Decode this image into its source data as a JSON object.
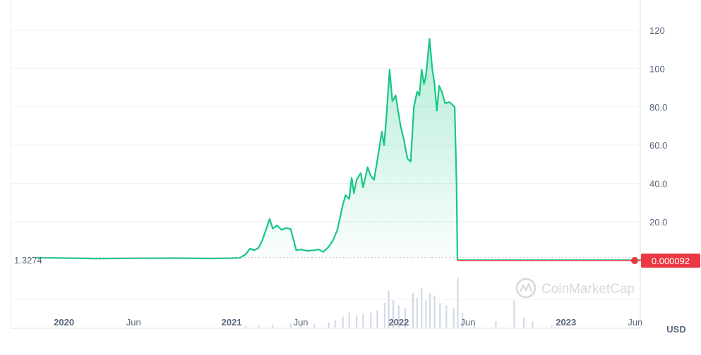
{
  "chart_data": {
    "type": "area",
    "y_ticks": [
      "120",
      "100",
      "80.0",
      "60.0",
      "40.0",
      "20.0"
    ],
    "y_tick_values": [
      120,
      100,
      80,
      60,
      40,
      20
    ],
    "ylim": [
      -10,
      134
    ],
    "x_ticks": [
      {
        "label": "2020",
        "date": "2020-01-01",
        "major": true
      },
      {
        "label": "Jun",
        "date": "2020-06-01",
        "major": false
      },
      {
        "label": "2021",
        "date": "2021-01-01",
        "major": true
      },
      {
        "label": "Jun",
        "date": "2021-06-01",
        "major": false
      },
      {
        "label": "2022",
        "date": "2022-01-01",
        "major": true
      },
      {
        "label": "Jun",
        "date": "2022-06-01",
        "major": false
      },
      {
        "label": "2023",
        "date": "2023-01-01",
        "major": true
      },
      {
        "label": "Jun",
        "date": "2023-06-01",
        "major": false
      }
    ],
    "xlim": [
      "2019-10-15",
      "2023-07-10"
    ],
    "currency": "USD",
    "start_price_label": "1.3274",
    "start_price": 1.3274,
    "current_price_label": "0.000092",
    "current_price": 9.2e-05,
    "watermark": "CoinMarketCap",
    "colors": {
      "up": "#16c784",
      "down": "#ea3943",
      "grid": "#eff2f5",
      "text": "#58667e",
      "volume": "#cfd6e4"
    },
    "series": [
      {
        "values": [
          [
            "2019-11-01",
            1.33
          ],
          [
            "2020-01-01",
            1.1
          ],
          [
            "2020-03-15",
            0.8
          ],
          [
            "2020-06-01",
            1.0
          ],
          [
            "2020-09-01",
            1.1
          ],
          [
            "2020-11-15",
            0.9
          ],
          [
            "2021-01-01",
            1.05
          ],
          [
            "2021-01-20",
            1.3
          ],
          [
            "2021-02-01",
            3.2
          ],
          [
            "2021-02-10",
            6.0
          ],
          [
            "2021-02-20",
            5.2
          ],
          [
            "2021-03-01",
            6.5
          ],
          [
            "2021-03-10",
            11.0
          ],
          [
            "2021-03-15",
            14.5
          ],
          [
            "2021-03-20",
            18.0
          ],
          [
            "2021-03-25",
            21.5
          ],
          [
            "2021-04-01",
            16.5
          ],
          [
            "2021-04-10",
            18.2
          ],
          [
            "2021-04-20",
            15.8
          ],
          [
            "2021-04-30",
            16.8
          ],
          [
            "2021-05-10",
            16.2
          ],
          [
            "2021-05-17",
            10.0
          ],
          [
            "2021-05-22",
            5.2
          ],
          [
            "2021-06-01",
            5.6
          ],
          [
            "2021-06-15",
            4.9
          ],
          [
            "2021-06-30",
            5.2
          ],
          [
            "2021-07-10",
            5.6
          ],
          [
            "2021-07-20",
            4.3
          ],
          [
            "2021-08-01",
            7.0
          ],
          [
            "2021-08-10",
            10.2
          ],
          [
            "2021-08-20",
            16.0
          ],
          [
            "2021-09-01",
            29.0
          ],
          [
            "2021-09-07",
            34.0
          ],
          [
            "2021-09-15",
            32.0
          ],
          [
            "2021-09-20",
            43.0
          ],
          [
            "2021-09-25",
            35.0
          ],
          [
            "2021-10-01",
            42.0
          ],
          [
            "2021-10-10",
            45.5
          ],
          [
            "2021-10-15",
            38.0
          ],
          [
            "2021-10-25",
            48.5
          ],
          [
            "2021-11-01",
            44.0
          ],
          [
            "2021-11-08",
            42.0
          ],
          [
            "2021-11-15",
            52.0
          ],
          [
            "2021-11-25",
            67.0
          ],
          [
            "2021-11-30",
            60.0
          ],
          [
            "2021-12-05",
            75.0
          ],
          [
            "2021-12-12",
            99.5
          ],
          [
            "2021-12-18",
            83.0
          ],
          [
            "2021-12-25",
            86.0
          ],
          [
            "2022-01-05",
            70.0
          ],
          [
            "2022-01-12",
            63.0
          ],
          [
            "2022-01-20",
            53.0
          ],
          [
            "2022-01-27",
            51.5
          ],
          [
            "2022-02-03",
            80.0
          ],
          [
            "2022-02-10",
            88.0
          ],
          [
            "2022-02-15",
            86.0
          ],
          [
            "2022-02-20",
            99.5
          ],
          [
            "2022-02-25",
            92.0
          ],
          [
            "2022-03-01",
            96.0
          ],
          [
            "2022-03-05",
            105.0
          ],
          [
            "2022-03-09",
            115.5
          ],
          [
            "2022-03-15",
            100.0
          ],
          [
            "2022-03-20",
            92.0
          ],
          [
            "2022-03-25",
            78.0
          ],
          [
            "2022-03-30",
            91.0
          ],
          [
            "2022-04-05",
            88.0
          ],
          [
            "2022-04-12",
            82.0
          ],
          [
            "2022-04-22",
            82.5
          ],
          [
            "2022-05-03",
            80.0
          ],
          [
            "2022-05-07",
            40.0
          ],
          [
            "2022-05-09",
            0.1
          ],
          [
            "2022-05-12",
            9.2e-05
          ],
          [
            "2023-07-05",
            9.2e-05
          ]
        ]
      }
    ],
    "volume": [
      [
        "2021-02-01",
        0.04
      ],
      [
        "2021-03-01",
        0.05
      ],
      [
        "2021-04-01",
        0.05
      ],
      [
        "2021-05-10",
        0.08
      ],
      [
        "2021-06-01",
        0.06
      ],
      [
        "2021-07-01",
        0.07
      ],
      [
        "2021-08-01",
        0.1
      ],
      [
        "2021-08-15",
        0.14
      ],
      [
        "2021-09-01",
        0.22
      ],
      [
        "2021-09-15",
        0.3
      ],
      [
        "2021-10-01",
        0.25
      ],
      [
        "2021-10-15",
        0.28
      ],
      [
        "2021-11-01",
        0.3
      ],
      [
        "2021-11-15",
        0.35
      ],
      [
        "2021-12-01",
        0.5
      ],
      [
        "2021-12-10",
        0.75
      ],
      [
        "2021-12-20",
        0.55
      ],
      [
        "2022-01-01",
        0.45
      ],
      [
        "2022-01-15",
        0.4
      ],
      [
        "2022-02-01",
        0.7
      ],
      [
        "2022-02-10",
        0.6
      ],
      [
        "2022-02-20",
        0.8
      ],
      [
        "2022-03-01",
        0.55
      ],
      [
        "2022-03-10",
        0.7
      ],
      [
        "2022-03-20",
        0.65
      ],
      [
        "2022-04-01",
        0.5
      ],
      [
        "2022-04-15",
        0.45
      ],
      [
        "2022-05-01",
        0.4
      ],
      [
        "2022-05-10",
        1.0
      ],
      [
        "2022-05-20",
        0.3
      ],
      [
        "2022-06-15",
        0.1
      ],
      [
        "2022-08-01",
        0.12
      ],
      [
        "2022-09-10",
        0.55
      ],
      [
        "2022-10-01",
        0.2
      ],
      [
        "2022-10-20",
        0.12
      ],
      [
        "2022-12-01",
        0.05
      ]
    ]
  }
}
